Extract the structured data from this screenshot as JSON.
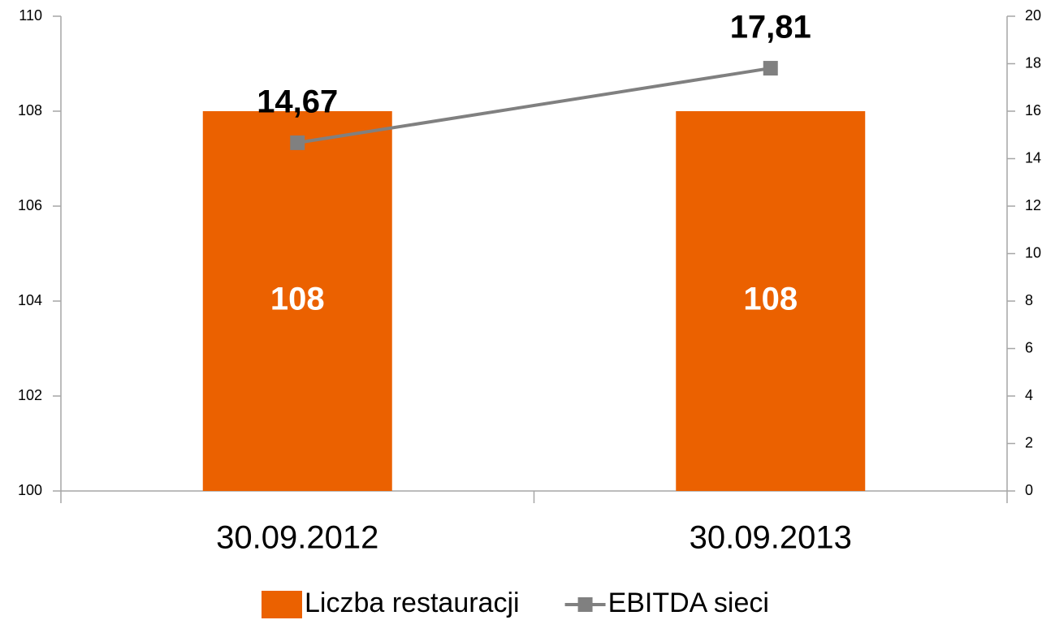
{
  "chart_data": {
    "type": "bar",
    "categories": [
      "30.09.2012",
      "30.09.2013"
    ],
    "series": [
      {
        "name": "Liczba restauracji",
        "type": "bar",
        "color": "#eb6100",
        "values": [
          108,
          108
        ]
      },
      {
        "name": "EBITDA sieci",
        "type": "line",
        "axis": "y2",
        "color": "#808080",
        "values": [
          14.67,
          17.81
        ],
        "value_labels": [
          "14,67",
          "17,81"
        ]
      }
    ],
    "ylim": [
      100,
      110
    ],
    "yticks": [
      100,
      102,
      104,
      106,
      108,
      110
    ],
    "y2lim": [
      0,
      20
    ],
    "y2ticks": [
      0,
      2,
      4,
      6,
      8,
      10,
      12,
      14,
      16,
      18,
      20
    ],
    "legend": "bottom"
  }
}
